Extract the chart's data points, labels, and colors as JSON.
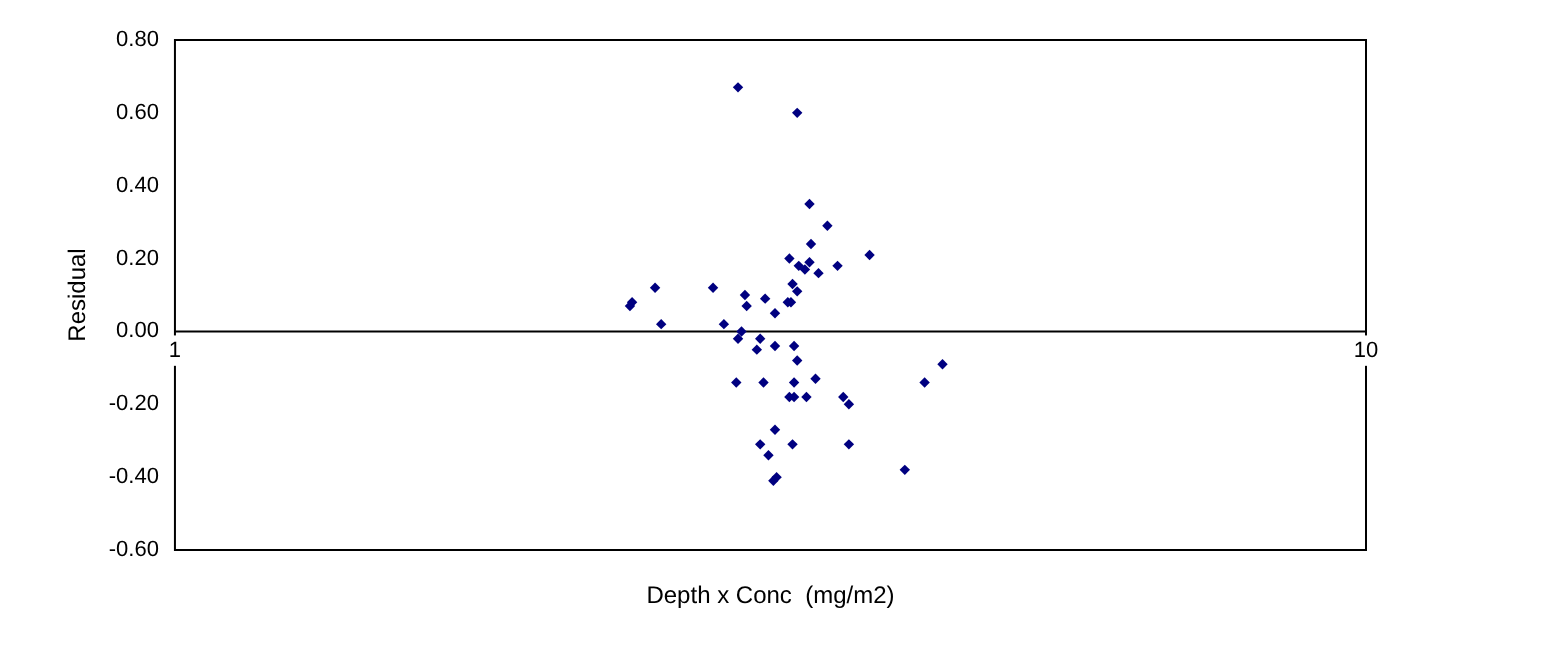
{
  "chart_data": {
    "type": "scatter",
    "xlabel": "Depth x Conc  (mg/m2)",
    "ylabel": "Residual",
    "log": "x",
    "xlim": [
      1,
      10
    ],
    "xticks": [
      1,
      10
    ],
    "ylim": [
      -0.6,
      0.8
    ],
    "yticks": [
      {
        "value": -0.6,
        "label": "-0.60"
      },
      {
        "value": -0.4,
        "label": "-0.40"
      },
      {
        "value": -0.2,
        "label": "-0.20"
      },
      {
        "value": 0,
        "label": "0.00"
      },
      {
        "value": 0.2,
        "label": "0.20"
      },
      {
        "value": 0.4,
        "label": "0.40"
      },
      {
        "value": 0.6,
        "label": "0.60"
      },
      {
        "value": 0.8,
        "label": "0.80"
      }
    ],
    "grid": false,
    "legend": false,
    "marker": "diamond",
    "series": [
      {
        "color": "#000080",
        "x": [
          2.97,
          3.33,
          3.41,
          3.53,
          3.42,
          3.28,
          3.41,
          3.34,
          3.38,
          3.47,
          3.6,
          3.83,
          3.3,
          3.33,
          3.27,
          3.29,
          3.19,
          3.13,
          3.01,
          3.02,
          2.83,
          2.53,
          2.42,
          2.41,
          2.56,
          2.89,
          2.99,
          2.97,
          3.1,
          3.08,
          3.19,
          3.31,
          3.33,
          2.96,
          3.12,
          3.31,
          3.45,
          3.28,
          3.31,
          3.39,
          3.64,
          3.68,
          4.26,
          4.41,
          3.19,
          3.1,
          3.3,
          3.68,
          3.15,
          3.2,
          3.18,
          4.1
        ],
        "values": [
          0.67,
          0.6,
          0.35,
          0.29,
          0.24,
          0.2,
          0.19,
          0.18,
          0.17,
          0.16,
          0.18,
          0.21,
          0.13,
          0.11,
          0.08,
          0.08,
          0.05,
          0.09,
          0.1,
          0.07,
          0.12,
          0.12,
          0.08,
          0.07,
          0.02,
          0.02,
          0.0,
          -0.02,
          -0.02,
          -0.05,
          -0.04,
          -0.04,
          -0.08,
          -0.14,
          -0.14,
          -0.14,
          -0.13,
          -0.18,
          -0.18,
          -0.18,
          -0.18,
          -0.2,
          -0.14,
          -0.09,
          -0.27,
          -0.31,
          -0.31,
          -0.31,
          -0.34,
          -0.4,
          -0.41,
          -0.38
        ]
      }
    ]
  }
}
